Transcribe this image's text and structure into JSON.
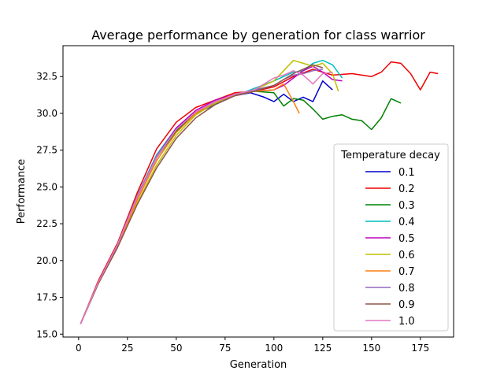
{
  "chart_data": {
    "type": "line",
    "title": "Average performance by generation for class warrior",
    "xlabel": "Generation",
    "ylabel": "Performance",
    "xlim": [
      -8,
      192
    ],
    "ylim": [
      14.8,
      34.6
    ],
    "xticks": [
      0,
      25,
      50,
      75,
      100,
      125,
      150,
      175
    ],
    "yticks": [
      15.0,
      17.5,
      20.0,
      22.5,
      25.0,
      27.5,
      30.0,
      32.5
    ],
    "ytick_labels": [
      "15.0",
      "17.5",
      "20.0",
      "22.5",
      "25.0",
      "27.5",
      "30.0",
      "32.5"
    ],
    "grid": false,
    "legend": {
      "title": "Temperature decay",
      "placement": "center-right"
    },
    "series": [
      {
        "name": "0.1",
        "color": "#0000cc",
        "x": [
          1,
          10,
          20,
          30,
          40,
          50,
          60,
          70,
          80,
          88,
          95,
          100,
          105,
          110,
          115,
          120,
          125,
          130
        ],
        "y": [
          15.7,
          18.5,
          21.0,
          24.3,
          27.0,
          28.9,
          30.0,
          30.6,
          31.2,
          31.4,
          31.1,
          30.8,
          31.3,
          30.8,
          31.1,
          30.8,
          32.2,
          31.6
        ]
      },
      {
        "name": "0.2",
        "color": "#ee0000",
        "x": [
          1,
          10,
          20,
          30,
          40,
          50,
          60,
          70,
          80,
          90,
          100,
          110,
          120,
          130,
          140,
          150,
          155,
          160,
          165,
          170,
          175,
          180,
          184
        ],
        "y": [
          15.7,
          18.6,
          21.2,
          24.6,
          27.6,
          29.4,
          30.4,
          30.9,
          31.4,
          31.5,
          31.8,
          32.5,
          33.0,
          32.6,
          32.7,
          32.5,
          32.8,
          33.5,
          33.4,
          32.7,
          31.6,
          32.8,
          32.7
        ]
      },
      {
        "name": "0.3",
        "color": "#008000",
        "x": [
          1,
          10,
          20,
          30,
          40,
          50,
          60,
          70,
          80,
          90,
          100,
          105,
          110,
          115,
          120,
          125,
          130,
          135,
          140,
          145,
          150,
          155,
          160,
          165
        ],
        "y": [
          15.7,
          18.4,
          21.0,
          24.3,
          27.0,
          28.8,
          30.0,
          30.7,
          31.2,
          31.5,
          31.4,
          30.5,
          31.0,
          30.9,
          30.3,
          29.6,
          29.8,
          29.9,
          29.6,
          29.5,
          28.9,
          29.7,
          31.0,
          30.7
        ]
      },
      {
        "name": "0.4",
        "color": "#00bfbf",
        "x": [
          1,
          10,
          20,
          30,
          40,
          50,
          60,
          70,
          80,
          90,
          100,
          105,
          110,
          115,
          120,
          125,
          130,
          135
        ],
        "y": [
          15.7,
          18.5,
          21.1,
          24.4,
          27.2,
          29.0,
          30.1,
          30.7,
          31.2,
          31.7,
          32.2,
          32.5,
          32.8,
          32.9,
          33.4,
          33.6,
          33.3,
          32.4
        ]
      },
      {
        "name": "0.5",
        "color": "#bf00bf",
        "x": [
          1,
          10,
          20,
          30,
          40,
          50,
          60,
          70,
          80,
          90,
          100,
          105,
          110,
          115,
          120,
          125,
          130,
          135
        ],
        "y": [
          15.7,
          18.5,
          21.1,
          24.3,
          27.1,
          29.0,
          30.2,
          30.9,
          31.3,
          31.5,
          31.6,
          31.9,
          32.4,
          32.9,
          33.2,
          32.8,
          32.3,
          32.2
        ]
      },
      {
        "name": "0.6",
        "color": "#bfbf00",
        "x": [
          1,
          10,
          20,
          30,
          40,
          50,
          60,
          70,
          80,
          90,
          100,
          105,
          110,
          115,
          120,
          125,
          130,
          133
        ],
        "y": [
          15.7,
          18.4,
          20.9,
          23.9,
          26.5,
          28.5,
          29.9,
          30.7,
          31.3,
          31.6,
          32.2,
          32.9,
          33.6,
          33.4,
          33.2,
          33.4,
          32.7,
          31.5
        ]
      },
      {
        "name": "0.7",
        "color": "#ff7f0e",
        "x": [
          1,
          10,
          20,
          30,
          40,
          50,
          60,
          70,
          80,
          90,
          100,
          105,
          110,
          113
        ],
        "y": [
          15.7,
          18.5,
          21.0,
          24.1,
          26.8,
          28.7,
          30.0,
          30.8,
          31.2,
          31.5,
          31.6,
          32.0,
          30.8,
          30.0
        ]
      },
      {
        "name": "0.8",
        "color": "#9467bd",
        "x": [
          1,
          10,
          20,
          30,
          40,
          50,
          60,
          70,
          80,
          90,
          100,
          105,
          110,
          115,
          120,
          125
        ],
        "y": [
          15.7,
          18.5,
          21.1,
          24.4,
          27.1,
          28.9,
          30.1,
          30.8,
          31.3,
          31.6,
          31.9,
          32.3,
          32.6,
          32.7,
          32.9,
          33.0
        ]
      },
      {
        "name": "0.9",
        "color": "#8c564b",
        "x": [
          1,
          10,
          20,
          30,
          40,
          50,
          60,
          70,
          80,
          90,
          100,
          105,
          110,
          115,
          120,
          125
        ],
        "y": [
          15.7,
          18.4,
          20.9,
          23.8,
          26.3,
          28.3,
          29.7,
          30.6,
          31.2,
          31.5,
          31.9,
          32.3,
          32.7,
          33.0,
          33.3,
          33.1
        ]
      },
      {
        "name": "1.0",
        "color": "#e377c2",
        "x": [
          1,
          10,
          20,
          30,
          40,
          50,
          60,
          70,
          80,
          90,
          100,
          105,
          110,
          115,
          120,
          125,
          130
        ],
        "y": [
          15.7,
          18.5,
          21.1,
          24.3,
          27.0,
          28.9,
          30.1,
          30.8,
          31.3,
          31.6,
          32.4,
          32.6,
          32.9,
          32.6,
          32.0,
          32.7,
          32.8
        ]
      }
    ]
  }
}
